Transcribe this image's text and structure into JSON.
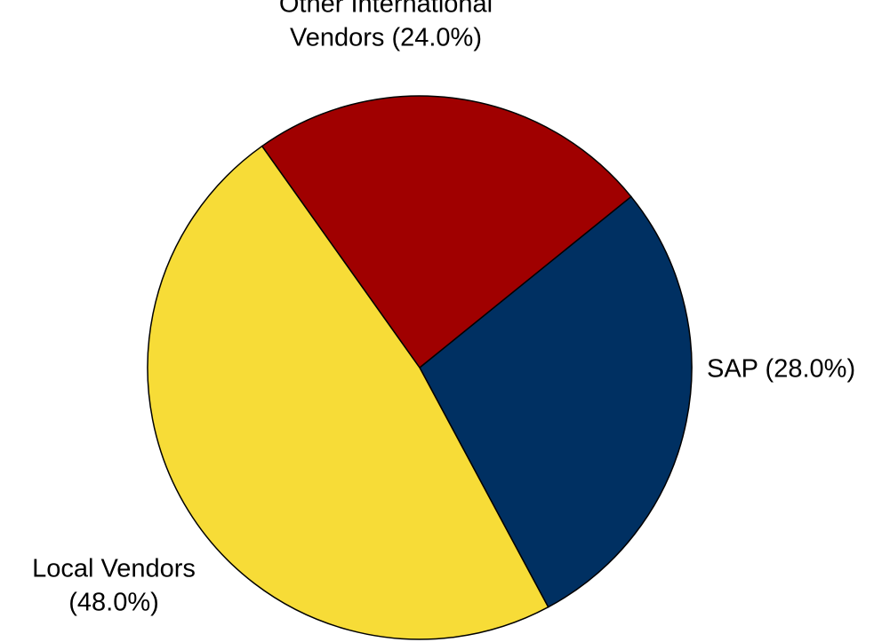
{
  "chart_data": {
    "type": "pie",
    "title": "",
    "legend": "none",
    "slices": [
      {
        "name": "SAP",
        "value": 28.0,
        "color": "#003062",
        "label_lines": [
          "SAP (28.0%)"
        ]
      },
      {
        "name": "Local Vendors",
        "value": 48.0,
        "color": "#F7DC37",
        "label_lines": [
          "Local Vendors",
          "(48.0%)"
        ]
      },
      {
        "name": "Other International Vendors",
        "value": 24.0,
        "color": "#A00000",
        "label_lines": [
          "Other International",
          "Vendors (24.0%)"
        ]
      }
    ]
  }
}
